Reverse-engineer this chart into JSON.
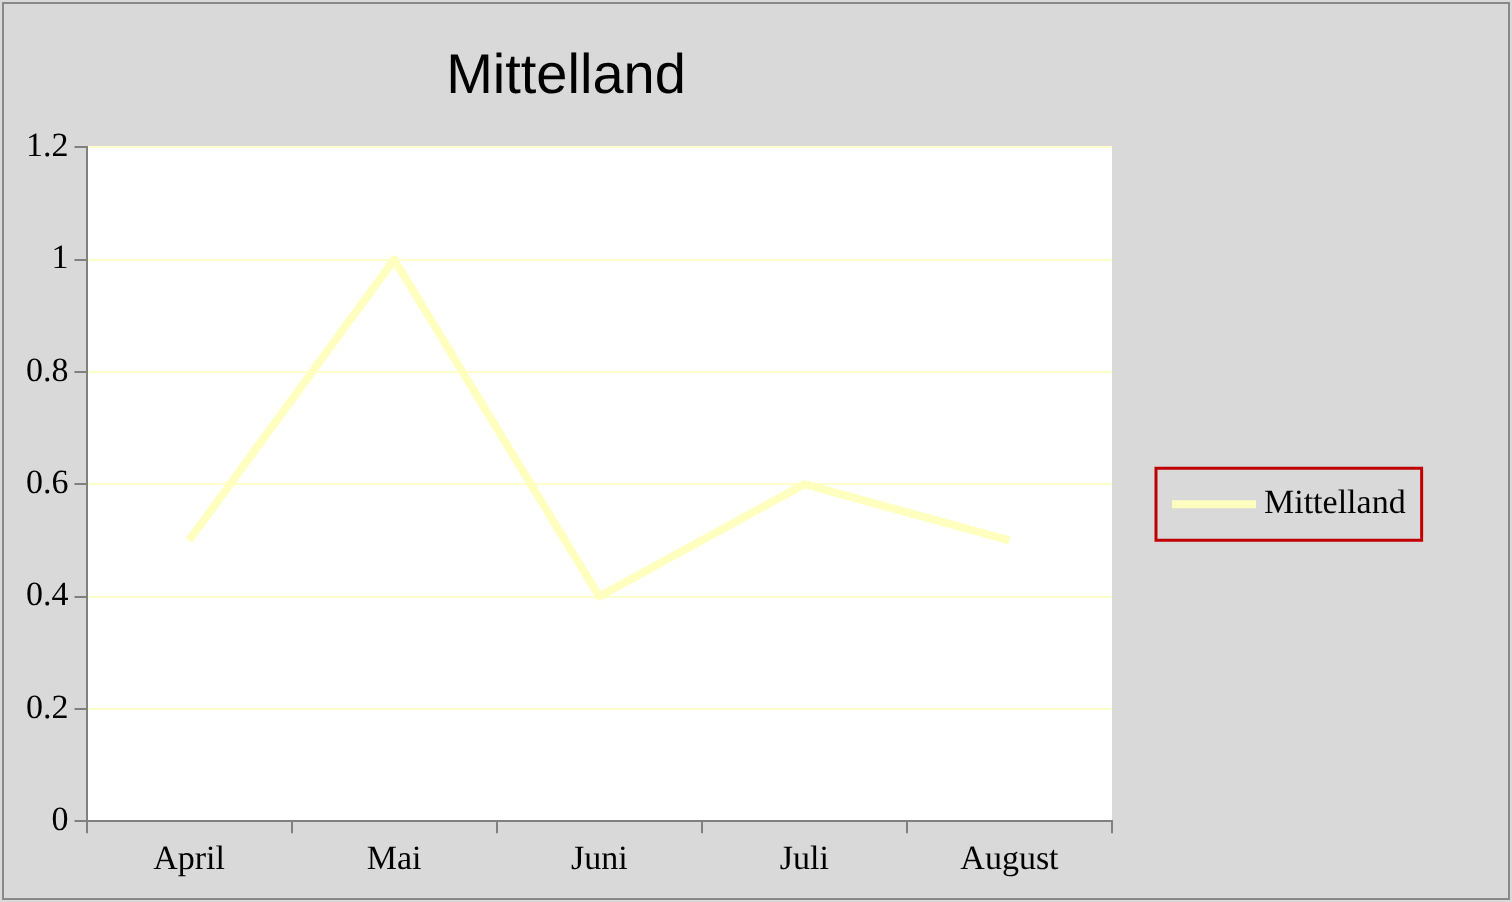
{
  "chart_data": {
    "type": "line",
    "title": "Mittelland",
    "categories": [
      "April",
      "Mai",
      "Juni",
      "Juli",
      "August"
    ],
    "series": [
      {
        "name": "Mittelland",
        "color": "#ffffc0",
        "values": [
          0.5,
          1,
          0.4,
          0.6,
          0.5
        ]
      }
    ],
    "ylim": [
      0,
      1.2
    ],
    "yticks": [
      0,
      0.2,
      0.4,
      0.6,
      0.8,
      1,
      1.2
    ],
    "grid": "y",
    "legend": "right",
    "marker": "none",
    "line_style": "solid"
  }
}
